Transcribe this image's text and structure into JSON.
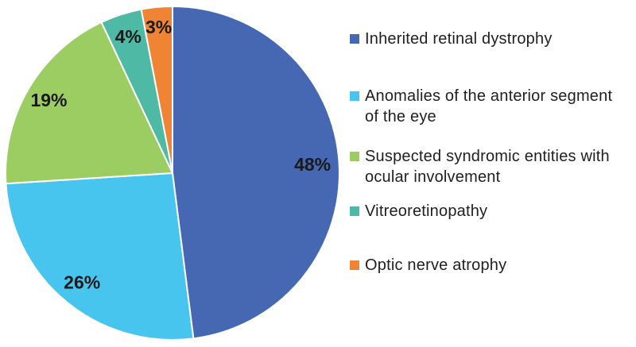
{
  "chart_data": {
    "type": "pie",
    "title": "",
    "categories": [
      "Inherited retinal dystrophy",
      "Anomalies of the anterior segment of the eye",
      "Suspected syndromic entities with ocular involvement",
      "Vitreoretinopathy",
      "Optic nerve atrophy"
    ],
    "values": [
      48,
      26,
      19,
      4,
      3
    ],
    "unit": "%",
    "slice_labels": [
      "48%",
      "26%",
      "19%",
      "4%",
      "3%"
    ],
    "colors": [
      "#4667b1",
      "#47c5ef",
      "#9ccd62",
      "#4eb9a4",
      "#ef8434"
    ],
    "slice_border_color": "#ffffff",
    "slice_label_color": "#1a1a1a",
    "start_angle_deg": 0,
    "direction": "clockwise",
    "legend_position": "right",
    "grid": false
  },
  "legend": {
    "items": [
      {
        "lines": [
          "Inherited retinal dystrophy"
        ]
      },
      {
        "lines": [
          "Anomalies of the anterior segment",
          "of the eye"
        ]
      },
      {
        "lines": [
          "Suspected syndromic entities with",
          "ocular involvement"
        ]
      },
      {
        "lines": [
          "Vitreoretinopathy"
        ]
      },
      {
        "lines": [
          "Optic nerve atrophy"
        ]
      }
    ]
  }
}
